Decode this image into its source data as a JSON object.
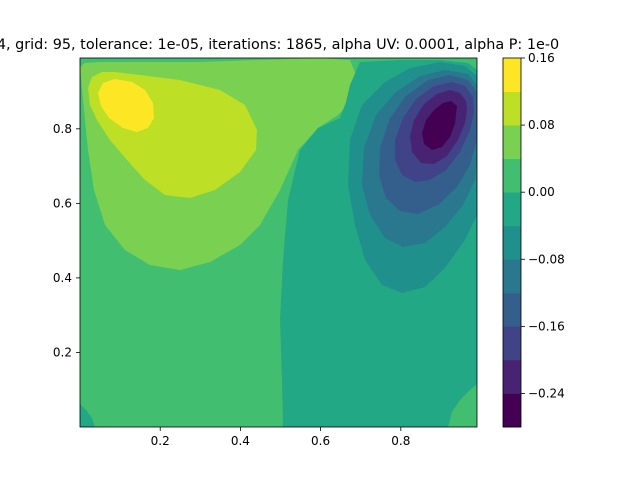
{
  "chart_data": {
    "type": "contourf",
    "title": "4, grid: 95, tolerance: 1e-05, iterations: 1865, alpha UV: 0.0001, alpha P: 1e-0",
    "xlabel": "",
    "ylabel": "",
    "xlim": [
      0.0,
      0.99
    ],
    "ylim": [
      0.0,
      0.99
    ],
    "x_ticks": [
      0.2,
      0.4,
      0.6,
      0.8
    ],
    "x_tick_labels": [
      "0.2",
      "0.4",
      "0.6",
      "0.8"
    ],
    "y_ticks": [
      0.2,
      0.4,
      0.6,
      0.8
    ],
    "y_tick_labels": [
      "0.2",
      "0.4",
      "0.6",
      "0.8"
    ],
    "grid": false,
    "colorbar": {
      "levels": [
        -0.28,
        -0.24,
        -0.2,
        -0.16,
        -0.12,
        -0.08,
        -0.04,
        0.0,
        0.04,
        0.08,
        0.12,
        0.16
      ],
      "colors": [
        "#440154",
        "#482374",
        "#404387",
        "#345f8d",
        "#29788e",
        "#20908d",
        "#22a884",
        "#42be71",
        "#7ad151",
        "#bddf26",
        "#fde725"
      ],
      "ticks": [
        -0.24,
        -0.16,
        -0.08,
        0.0,
        0.08,
        0.16
      ],
      "tick_labels": [
        "−0.24",
        "−0.16",
        "−0.08",
        "0.00",
        "0.08",
        "0.16"
      ]
    },
    "field_features": [
      {
        "kind": "max",
        "x": 0.13,
        "y": 0.85,
        "value": 0.155
      },
      {
        "kind": "min",
        "x": 0.9,
        "y": 0.81,
        "value": -0.29
      }
    ]
  }
}
